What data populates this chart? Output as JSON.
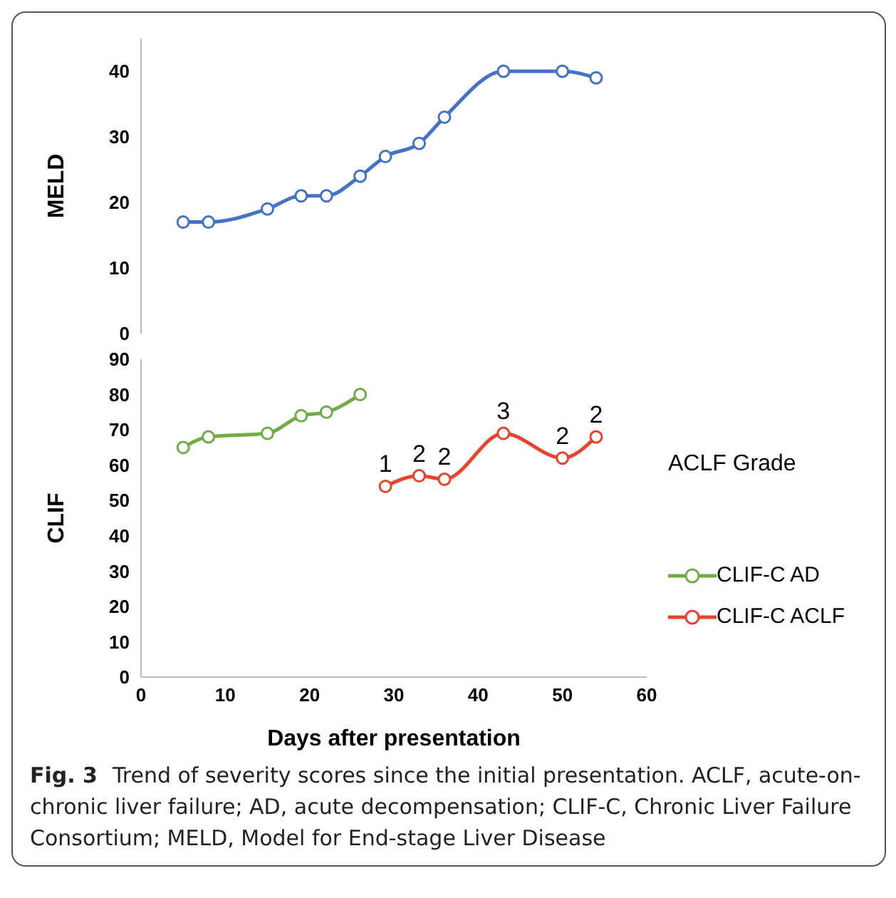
{
  "chart_data": [
    {
      "type": "line",
      "ylabel": "MELD",
      "xlim": [
        0,
        60
      ],
      "ylim": [
        0,
        45
      ],
      "yticks": [
        0,
        10,
        20,
        30,
        40
      ],
      "tick_labels": "y",
      "grid": false,
      "legend": false,
      "marker": "circle",
      "line_style": "solid",
      "series": [
        {
          "color": "#4472c4",
          "x": [
            5,
            8,
            15,
            19,
            22,
            26,
            29,
            33,
            36,
            43,
            50,
            54
          ],
          "values": [
            17,
            17,
            19,
            21,
            21,
            24,
            27,
            29,
            33,
            40,
            40,
            39
          ]
        }
      ]
    },
    {
      "type": "line",
      "ylabel": "CLIF",
      "xlabel": "Days after presentation",
      "xlim": [
        0,
        60
      ],
      "xticks": [
        0,
        10,
        20,
        30,
        40,
        50,
        60
      ],
      "ylim": [
        0,
        90
      ],
      "yticks": [
        0,
        10,
        20,
        30,
        40,
        50,
        60,
        70,
        80,
        90
      ],
      "grid": false,
      "legend": "right",
      "legend_title": "ACLF Grade",
      "marker": "circle",
      "line_style": "solid",
      "series": [
        {
          "name": "CLIF-C AD",
          "color": "#70ad47",
          "x": [
            5,
            8,
            15,
            19,
            22,
            26
          ],
          "values": [
            65,
            68,
            69,
            74,
            75,
            80
          ]
        },
        {
          "name": "CLIF-C ACLF",
          "color": "#e8432f",
          "x": [
            29,
            33,
            36,
            43,
            50,
            54
          ],
          "values": [
            54,
            57,
            56,
            69,
            62,
            68
          ]
        }
      ],
      "annotations": [
        {
          "text": "1",
          "x": 29,
          "y": 54
        },
        {
          "text": "2",
          "x": 33,
          "y": 57
        },
        {
          "text": "2",
          "x": 36,
          "y": 56
        },
        {
          "text": "3",
          "x": 43,
          "y": 69
        },
        {
          "text": "2",
          "x": 50,
          "y": 62
        },
        {
          "text": "2",
          "x": 54,
          "y": 68
        },
        "Fig. 3",
        "Trend of severity scores since the initial presentation. ACLF, acute-on-chronic liver failure; AD, acute decompensation; CLIF-C, Chronic Liver Failure Consortium; MELD, Model for End-stage Liver Disease"
      ]
    }
  ]
}
